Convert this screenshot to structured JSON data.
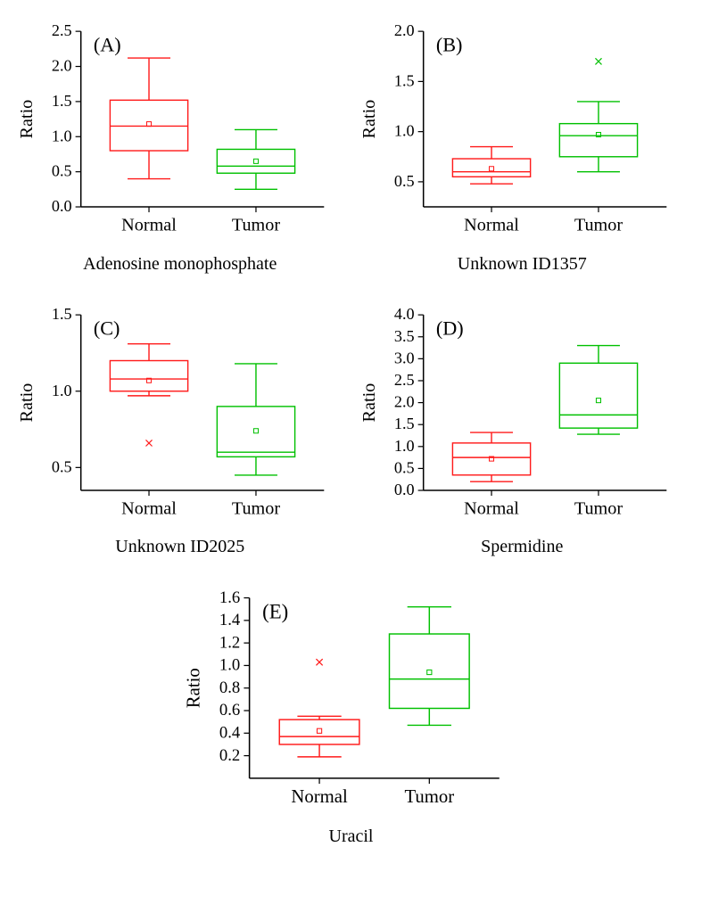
{
  "global": {
    "ylabel": "Ratio",
    "categories": [
      "Normal",
      "Tumor"
    ],
    "label_fontsize": 20,
    "tick_fontsize": 18,
    "panel_label_fontsize": 22,
    "axis_color": "#000000",
    "normal_color": "#ff1a1a",
    "tumor_color": "#00c000",
    "line_width": 1.4,
    "fill_opacity": 0
  },
  "panels": [
    {
      "id": "A",
      "panel_label": "(A)",
      "title": "Adenosine monophosphate",
      "ylim": [
        0,
        2.5
      ],
      "ytick_step": 0.5,
      "decimals": 1,
      "boxes": [
        {
          "which": "normal",
          "q1": 0.8,
          "median": 1.15,
          "q3": 1.52,
          "wlow": 0.4,
          "whigh": 2.12,
          "mean": 1.18,
          "outliers": []
        },
        {
          "which": "tumor",
          "q1": 0.48,
          "median": 0.58,
          "q3": 0.82,
          "wlow": 0.25,
          "whigh": 1.1,
          "mean": 0.65,
          "outliers": []
        }
      ]
    },
    {
      "id": "B",
      "panel_label": "(B)",
      "title": "Unknown ID1357",
      "ylim": [
        0.25,
        2.0
      ],
      "yticks": [
        0.5,
        1.0,
        1.5,
        2.0
      ],
      "decimals": 1,
      "boxes": [
        {
          "which": "normal",
          "q1": 0.55,
          "median": 0.6,
          "q3": 0.73,
          "wlow": 0.48,
          "whigh": 0.85,
          "mean": 0.63,
          "outliers": []
        },
        {
          "which": "tumor",
          "q1": 0.75,
          "median": 0.96,
          "q3": 1.08,
          "wlow": 0.6,
          "whigh": 1.3,
          "mean": 0.97,
          "outliers": [
            1.7
          ]
        }
      ]
    },
    {
      "id": "C",
      "panel_label": "(C)",
      "title": "Unknown ID2025",
      "ylim": [
        0.35,
        1.5
      ],
      "yticks": [
        0.5,
        1.0,
        1.5
      ],
      "decimals": 1,
      "boxes": [
        {
          "which": "normal",
          "q1": 1.0,
          "median": 1.08,
          "q3": 1.2,
          "wlow": 0.97,
          "whigh": 1.31,
          "mean": 1.07,
          "outliers": [
            0.66
          ]
        },
        {
          "which": "tumor",
          "q1": 0.57,
          "median": 0.6,
          "q3": 0.9,
          "wlow": 0.45,
          "whigh": 1.18,
          "mean": 0.74,
          "outliers": []
        }
      ]
    },
    {
      "id": "D",
      "panel_label": "(D)",
      "title": "Spermidine",
      "ylim": [
        0,
        4.0
      ],
      "ytick_step": 0.5,
      "decimals": 1,
      "boxes": [
        {
          "which": "normal",
          "q1": 0.35,
          "median": 0.75,
          "q3": 1.08,
          "wlow": 0.2,
          "whigh": 1.32,
          "mean": 0.72,
          "outliers": []
        },
        {
          "which": "tumor",
          "q1": 1.42,
          "median": 1.72,
          "q3": 2.9,
          "wlow": 1.28,
          "whigh": 3.3,
          "mean": 2.05,
          "outliers": []
        }
      ]
    },
    {
      "id": "E",
      "panel_label": "(E)",
      "title": "Uracil",
      "ylim": [
        0,
        1.6
      ],
      "yticks": [
        0.2,
        0.4,
        0.6,
        0.8,
        1.0,
        1.2,
        1.4,
        1.6
      ],
      "decimals": 1,
      "boxes": [
        {
          "which": "normal",
          "q1": 0.3,
          "median": 0.37,
          "q3": 0.52,
          "wlow": 0.19,
          "whigh": 0.55,
          "mean": 0.42,
          "outliers": [
            1.03
          ]
        },
        {
          "which": "tumor",
          "q1": 0.62,
          "median": 0.88,
          "q3": 1.28,
          "wlow": 0.47,
          "whigh": 1.52,
          "mean": 0.94,
          "outliers": []
        }
      ]
    }
  ]
}
